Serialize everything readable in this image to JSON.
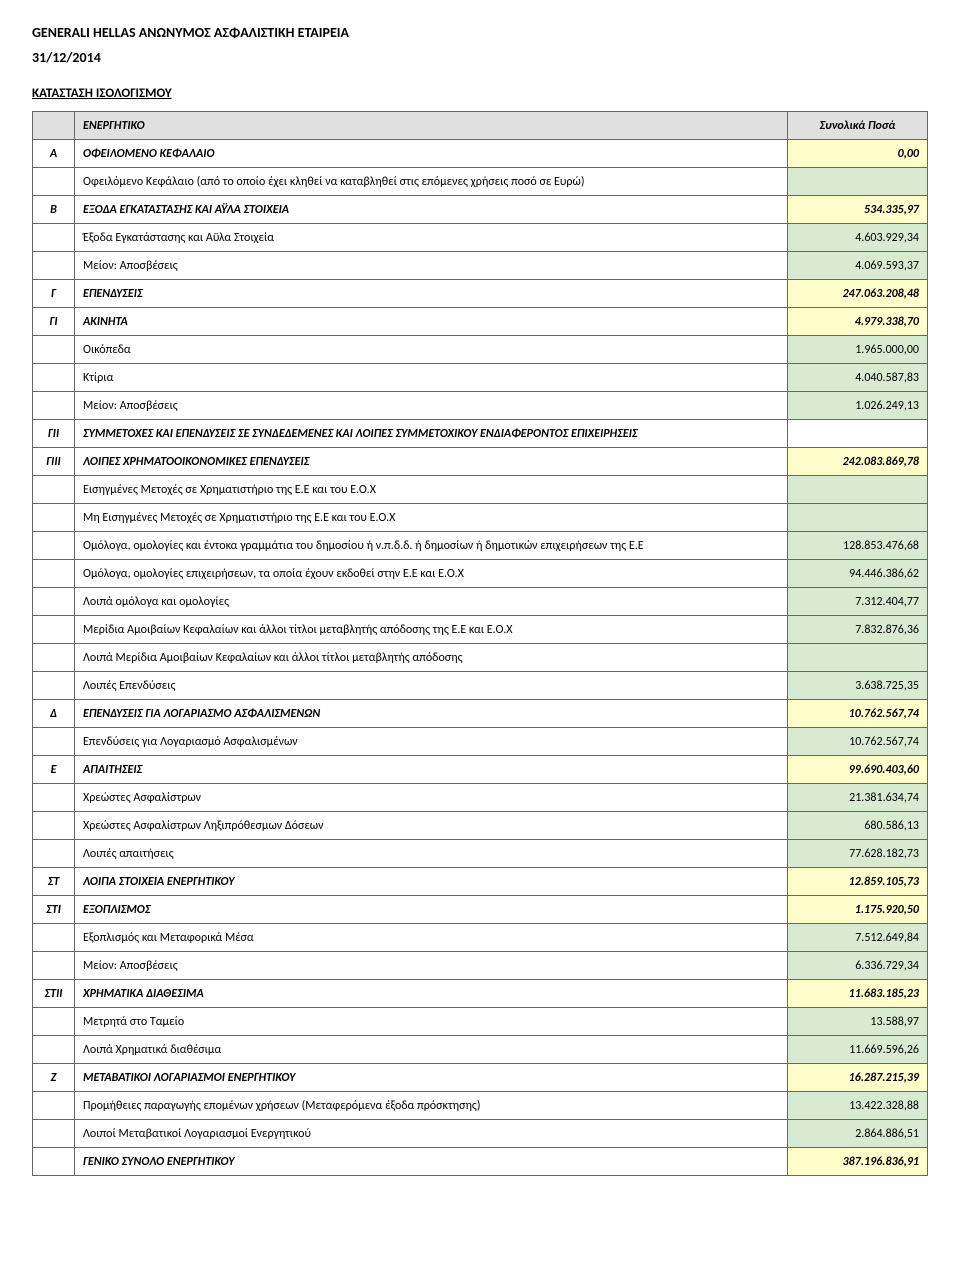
{
  "company": "GENERALI HELLAS ΑΝΩΝΥΜΟΣ ΑΣΦΑΛΙΣΤΙΚΗ ΕΤΑΙΡΕΙΑ",
  "date": "31/12/2014",
  "section_title": "ΚΑΤΑΣΤΑΣΗ ΙΣΟΛΟΓΙΣΜΟΥ",
  "table_header": {
    "label": "ΕΝΕΡΓΗΤΙΚΟ",
    "value_col": "Συνολικά Ποσά"
  },
  "colors": {
    "header_bg": "#e0e0e0",
    "yellow_bg": "#ffffcc",
    "green_bg": "#d9ead3",
    "border": "#666666",
    "text": "#000000"
  },
  "typography": {
    "body_fontsize": 12,
    "header_fontsize": 14,
    "font_family": "Calibri"
  },
  "rows": [
    {
      "code": "Α",
      "label": "ΟΦΕΙΛΟΜΕΝΟ ΚΕΦΑΛΑΙΟ",
      "value": "0,00",
      "row_style": "bold-italic",
      "value_bg": "yellow"
    },
    {
      "code": "",
      "label": "Οφειλόμενο Κεφάλαιο (από το οποίο έχει κληθεί να καταβληθεί στις επόμενες χρήσεις ποσό σε Ευρώ)",
      "value": "",
      "value_bg": "green"
    },
    {
      "code": "Β",
      "label": "ΕΞΟΔΑ ΕΓΚΑΤΑΣΤΑΣΗΣ ΚΑΙ ΑΫΛΑ ΣΤΟΙΧΕΙΑ",
      "value": "534.335,97",
      "row_style": "bold-italic",
      "value_bg": "yellow"
    },
    {
      "code": "",
      "label": "Έξοδα Εγκατάστασης και Αϋλα Στοιχεία",
      "value": "4.603.929,34",
      "value_bg": "green"
    },
    {
      "code": "",
      "label": "Μείον: Αποσβέσεις",
      "value": "4.069.593,37",
      "value_bg": "green"
    },
    {
      "code": "Γ",
      "label": "ΕΠΕΝΔΥΣΕΙΣ",
      "value": "247.063.208,48",
      "row_style": "bold-italic",
      "value_bg": "yellow"
    },
    {
      "code": "ΓΙ",
      "label": "ΑΚΙΝΗΤΑ",
      "value": "4.979.338,70",
      "row_style": "bold-italic",
      "value_bg": "yellow"
    },
    {
      "code": "",
      "label": "Οικόπεδα",
      "value": "1.965.000,00",
      "value_bg": "green"
    },
    {
      "code": "",
      "label": "Κτίρια",
      "value": "4.040.587,83",
      "value_bg": "green"
    },
    {
      "code": "",
      "label": "Μείον: Αποσβέσεις",
      "value": "1.026.249,13",
      "value_bg": "green"
    },
    {
      "code": "ΓΙΙ",
      "label": "ΣΥΜΜΕΤΟΧΕΣ ΚΑΙ ΕΠΕΝΔΥΣΕΙΣ ΣΕ ΣΥΝΔΕΔΕΜΕΝΕΣ ΚΑΙ ΛΟΙΠΕΣ ΣΥΜΜΕΤΟΧΙΚΟΥ ΕΝΔΙΑΦΕΡΟΝΤΟΣ ΕΠΙΧΕΙΡΗΣΕΙΣ",
      "value": "",
      "row_style": "bold-italic",
      "value_bg": ""
    },
    {
      "code": "ΓΙΙΙ",
      "label": "ΛΟΙΠΕΣ ΧΡΗΜΑΤΟΟΙΚΟΝΟΜΙΚΕΣ ΕΠΕΝΔΥΣΕΙΣ",
      "value": "242.083.869,78",
      "row_style": "bold-italic",
      "value_bg": "yellow"
    },
    {
      "code": "",
      "label": "Εισηγμένες Μετοχές σε Χρηματιστήριο της Ε.Ε και του Ε.Ο.Χ",
      "value": "",
      "value_bg": "green"
    },
    {
      "code": "",
      "label": "Μη Εισηγμένες Μετοχές σε Χρηματιστήριο της Ε.Ε και του Ε.Ο.Χ",
      "value": "",
      "value_bg": "green"
    },
    {
      "code": "",
      "label": "Ομόλογα, ομολογίες και έντοκα γραμμάτια του δημοσίου ή ν.π.δ.δ. ή δημοσίων ή δημοτικών επιχειρήσεων της Ε.Ε",
      "value": "128.853.476,68",
      "value_bg": "green"
    },
    {
      "code": "",
      "label": "Ομόλογα, ομολογίες επιχειρήσεων, τα οποία έχουν εκδοθεί στην Ε.Ε και Ε.Ο.Χ",
      "value": "94.446.386,62",
      "value_bg": "green"
    },
    {
      "code": "",
      "label": "Λοιπά ομόλογα και ομολογίες",
      "value": "7.312.404,77",
      "value_bg": "green"
    },
    {
      "code": "",
      "label": "Μερίδια Αμοιβαίων Κεφαλαίων και άλλοι τίτλοι μεταβλητής απόδοσης της Ε.Ε και Ε.Ο.Χ",
      "value": "7.832.876,36",
      "value_bg": "green"
    },
    {
      "code": "",
      "label": "Λοιπά Μερίδια Αμοιβαίων Κεφαλαίων και άλλοι τίτλοι μεταβλητής απόδοσης",
      "value": "",
      "value_bg": "green"
    },
    {
      "code": "",
      "label": "Λοιπές Επενδύσεις",
      "value": "3.638.725,35",
      "value_bg": "green"
    },
    {
      "code": "Δ",
      "label": "ΕΠΕΝΔΥΣΕΙΣ ΓΙΑ ΛΟΓΑΡΙΑΣΜΟ ΑΣΦΑΛΙΣΜΕΝΩΝ",
      "value": "10.762.567,74",
      "row_style": "bold-italic",
      "value_bg": "yellow"
    },
    {
      "code": "",
      "label": "Επενδύσεις για Λογαριασμό Ασφαλισμένων",
      "value": "10.762.567,74",
      "value_bg": "green"
    },
    {
      "code": "Ε",
      "label": "ΑΠΑΙΤΗΣΕΙΣ",
      "value": "99.690.403,60",
      "row_style": "bold-italic",
      "value_bg": "yellow"
    },
    {
      "code": "",
      "label": "Χρεώστες Ασφαλίστρων",
      "value": "21.381.634,74",
      "value_bg": "green"
    },
    {
      "code": "",
      "label": "Χρεώστες Ασφαλίστρων Ληξιπρόθεσμων Δόσεων",
      "value": "680.586,13",
      "value_bg": "green"
    },
    {
      "code": "",
      "label": "Λοιπές απαιτήσεις",
      "value": "77.628.182,73",
      "value_bg": "green"
    },
    {
      "code": "ΣΤ",
      "label": "ΛΟΙΠΑ ΣΤΟΙΧΕΙΑ ΕΝΕΡΓΗΤΙΚΟΥ",
      "value": "12.859.105,73",
      "row_style": "bold-italic",
      "value_bg": "yellow"
    },
    {
      "code": "ΣΤΙ",
      "label": "ΕΞΟΠΛΙΣΜΟΣ",
      "value": "1.175.920,50",
      "row_style": "bold-italic",
      "value_bg": "yellow"
    },
    {
      "code": "",
      "label": "Εξοπλισμός και Μεταφορικά Μέσα",
      "value": "7.512.649,84",
      "value_bg": "green"
    },
    {
      "code": "",
      "label": "Μείον: Αποσβέσεις",
      "value": "6.336.729,34",
      "value_bg": "green"
    },
    {
      "code": "ΣΤΙΙ",
      "label": "ΧΡΗΜΑΤΙΚΑ ΔΙΑΘΕΣΙΜΑ",
      "value": "11.683.185,23",
      "row_style": "bold-italic",
      "value_bg": "yellow"
    },
    {
      "code": "",
      "label": "Μετρητά στο Ταμείο",
      "value": "13.588,97",
      "value_bg": "green"
    },
    {
      "code": "",
      "label": "Λοιπά Χρηματικά διαθέσιμα",
      "value": "11.669.596,26",
      "value_bg": "green"
    },
    {
      "code": "Ζ",
      "label": "ΜΕΤΑΒΑΤΙΚΟΙ ΛΟΓΑΡΙΑΣΜΟΙ ΕΝΕΡΓΗΤΙΚΟΥ",
      "value": "16.287.215,39",
      "row_style": "bold-italic",
      "value_bg": "yellow"
    },
    {
      "code": "",
      "label": "Προμήθειες παραγωγής επομένων χρήσεων (Μεταφερόμενα έξοδα πρόσκτησης)",
      "value": "13.422.328,88",
      "value_bg": "green"
    },
    {
      "code": "",
      "label": "Λοιποί Μεταβατικοί Λογαριασμοί Ενεργητικού",
      "value": "2.864.886,51",
      "value_bg": "green"
    },
    {
      "code": "",
      "label": "ΓΕΝΙΚΟ ΣΥΝΟΛΟ ΕΝΕΡΓΗΤΙΚΟΥ",
      "value": "387.196.836,91",
      "row_style": "bold-italic",
      "value_bg": "yellow"
    }
  ]
}
